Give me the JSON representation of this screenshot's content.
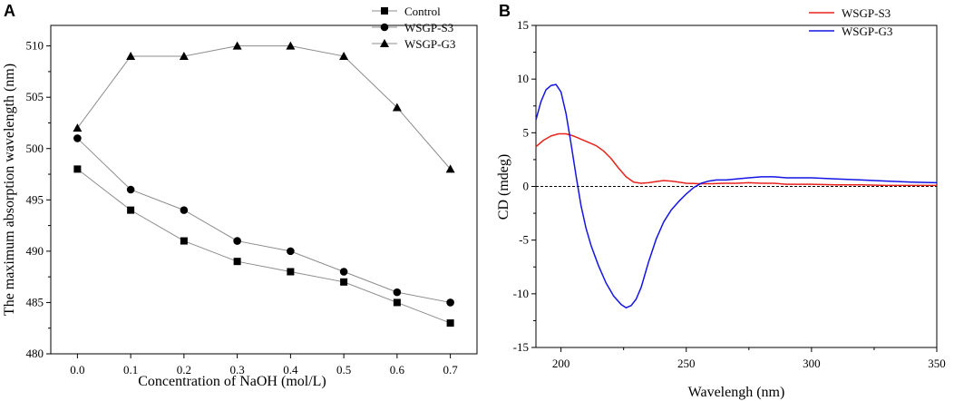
{
  "chart_data": [
    {
      "type": "line",
      "panel_label": "A",
      "title": "",
      "xlabel": "Concentration of NaOH (mol/L)",
      "ylabel": "The maximum absorption wavelength (nm)",
      "x": [
        0.0,
        0.1,
        0.2,
        0.3,
        0.4,
        0.5,
        0.6,
        0.7
      ],
      "x_tick_labels": [
        "0.0",
        "0.1",
        "0.2",
        "0.3",
        "0.4",
        "0.5",
        "0.6",
        "0.7"
      ],
      "y_tick_values": [
        480,
        485,
        490,
        495,
        500,
        505,
        510
      ],
      "y_tick_labels": [
        "480",
        "485",
        "490",
        "495",
        "500",
        "505",
        "510"
      ],
      "xlim": [
        -0.05,
        0.75
      ],
      "ylim": [
        480,
        512
      ],
      "legend_position": "top-right",
      "series": [
        {
          "name": "Control",
          "marker": "square",
          "color": "#000000",
          "line_color": "#8c8c8c",
          "values": [
            498,
            494,
            491,
            489,
            488,
            487,
            485,
            483
          ]
        },
        {
          "name": "WSGP-S3",
          "marker": "circle",
          "color": "#000000",
          "line_color": "#8c8c8c",
          "values": [
            501,
            496,
            494,
            491,
            490,
            488,
            486,
            485
          ]
        },
        {
          "name": "WSGP-G3",
          "marker": "triangle",
          "color": "#000000",
          "line_color": "#8c8c8c",
          "values": [
            502,
            509,
            509,
            510,
            510,
            509,
            504,
            498
          ]
        }
      ]
    },
    {
      "type": "line",
      "panel_label": "B",
      "title": "",
      "xlabel": "Wavelengh (nm)",
      "ylabel": "CD (mdeg)",
      "x_tick_values": [
        200,
        250,
        300,
        350
      ],
      "x_tick_labels": [
        "200",
        "250",
        "300",
        "350"
      ],
      "y_tick_values": [
        -15,
        -10,
        -5,
        0,
        5,
        10,
        15
      ],
      "y_tick_labels": [
        "-15",
        "-10",
        "-5",
        "0",
        "5",
        "10",
        "15"
      ],
      "xlim": [
        190,
        350
      ],
      "ylim": [
        -15,
        15
      ],
      "zero_line": true,
      "legend_position": "top-right",
      "series": [
        {
          "name": "WSGP-S3",
          "color": "#e8231c",
          "x": [
            190,
            193,
            196,
            199,
            202,
            205,
            208,
            211,
            214,
            217,
            220,
            223,
            226,
            229,
            232,
            235,
            238,
            241,
            244,
            247,
            250,
            255,
            260,
            265,
            270,
            275,
            280,
            285,
            290,
            295,
            300,
            310,
            320,
            330,
            340,
            350
          ],
          "values": [
            3.7,
            4.3,
            4.7,
            4.9,
            4.9,
            4.7,
            4.4,
            4.1,
            3.8,
            3.3,
            2.6,
            1.7,
            0.9,
            0.4,
            0.3,
            0.35,
            0.45,
            0.55,
            0.5,
            0.4,
            0.3,
            0.25,
            0.25,
            0.3,
            0.3,
            0.35,
            0.3,
            0.3,
            0.2,
            0.2,
            0.2,
            0.15,
            0.15,
            0.1,
            0.1,
            0.1
          ]
        },
        {
          "name": "WSGP-G3",
          "color": "#1414e6",
          "x": [
            190,
            192,
            194,
            196,
            198,
            200,
            202,
            204,
            206,
            208,
            210,
            212,
            215,
            218,
            221,
            224,
            226,
            228,
            230,
            232,
            235,
            238,
            241,
            244,
            247,
            250,
            253,
            256,
            259,
            262,
            266,
            270,
            275,
            280,
            285,
            290,
            295,
            300,
            310,
            320,
            330,
            340,
            350
          ],
          "values": [
            6.2,
            7.9,
            9.0,
            9.4,
            9.5,
            8.8,
            6.8,
            4.0,
            1.0,
            -1.8,
            -3.9,
            -5.5,
            -7.4,
            -9.0,
            -10.2,
            -11.0,
            -11.3,
            -11.1,
            -10.5,
            -9.4,
            -7.0,
            -4.9,
            -3.3,
            -2.2,
            -1.4,
            -0.7,
            -0.1,
            0.3,
            0.5,
            0.6,
            0.6,
            0.7,
            0.8,
            0.9,
            0.9,
            0.8,
            0.8,
            0.8,
            0.7,
            0.6,
            0.5,
            0.4,
            0.35
          ]
        }
      ]
    }
  ]
}
